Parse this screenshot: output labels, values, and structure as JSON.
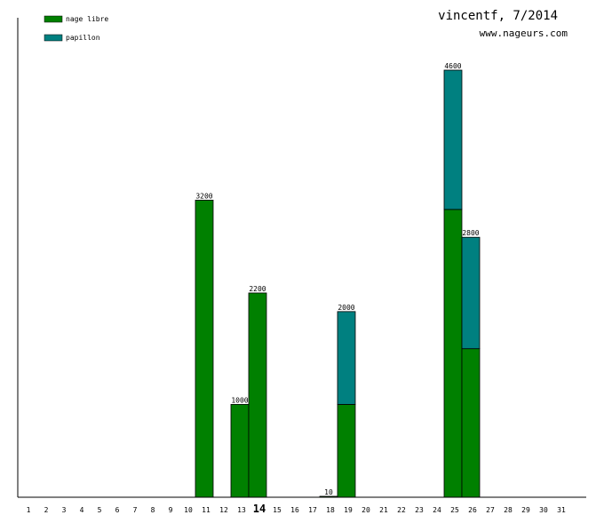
{
  "header": {
    "title": "vincentf, 7/2014",
    "site": "www.nageurs.com"
  },
  "colors": {
    "nage_libre": "#008000",
    "papillon": "#008080",
    "axis": "#000000"
  },
  "chart_data": {
    "type": "bar",
    "stacked": true,
    "title": "vincentf, 7/2014",
    "xlabel": "",
    "ylabel": "",
    "legend_position": "top-left",
    "grid": false,
    "ylim": [
      0,
      4600
    ],
    "highlight_category": "14",
    "categories": [
      "1",
      "2",
      "3",
      "4",
      "5",
      "6",
      "7",
      "8",
      "9",
      "10",
      "11",
      "12",
      "13",
      "14",
      "15",
      "16",
      "17",
      "18",
      "19",
      "20",
      "21",
      "22",
      "23",
      "24",
      "25",
      "26",
      "27",
      "28",
      "29",
      "30",
      "31"
    ],
    "series": [
      {
        "name": "nage libre",
        "color": "#008000",
        "values": [
          0,
          0,
          0,
          0,
          0,
          0,
          0,
          0,
          0,
          0,
          3200,
          0,
          1000,
          2200,
          0,
          0,
          0,
          10,
          1000,
          0,
          0,
          0,
          0,
          0,
          3100,
          1600,
          0,
          0,
          0,
          0,
          0
        ]
      },
      {
        "name": "papillon",
        "color": "#008080",
        "values": [
          0,
          0,
          0,
          0,
          0,
          0,
          0,
          0,
          0,
          0,
          0,
          0,
          0,
          0,
          0,
          0,
          0,
          0,
          1000,
          0,
          0,
          0,
          0,
          0,
          1500,
          1200,
          0,
          0,
          0,
          0,
          0
        ]
      }
    ],
    "totals": [
      0,
      0,
      0,
      0,
      0,
      0,
      0,
      0,
      0,
      0,
      3200,
      0,
      1000,
      2200,
      0,
      0,
      0,
      10,
      2000,
      0,
      0,
      0,
      0,
      0,
      4600,
      2800,
      0,
      0,
      0,
      0,
      0
    ]
  }
}
